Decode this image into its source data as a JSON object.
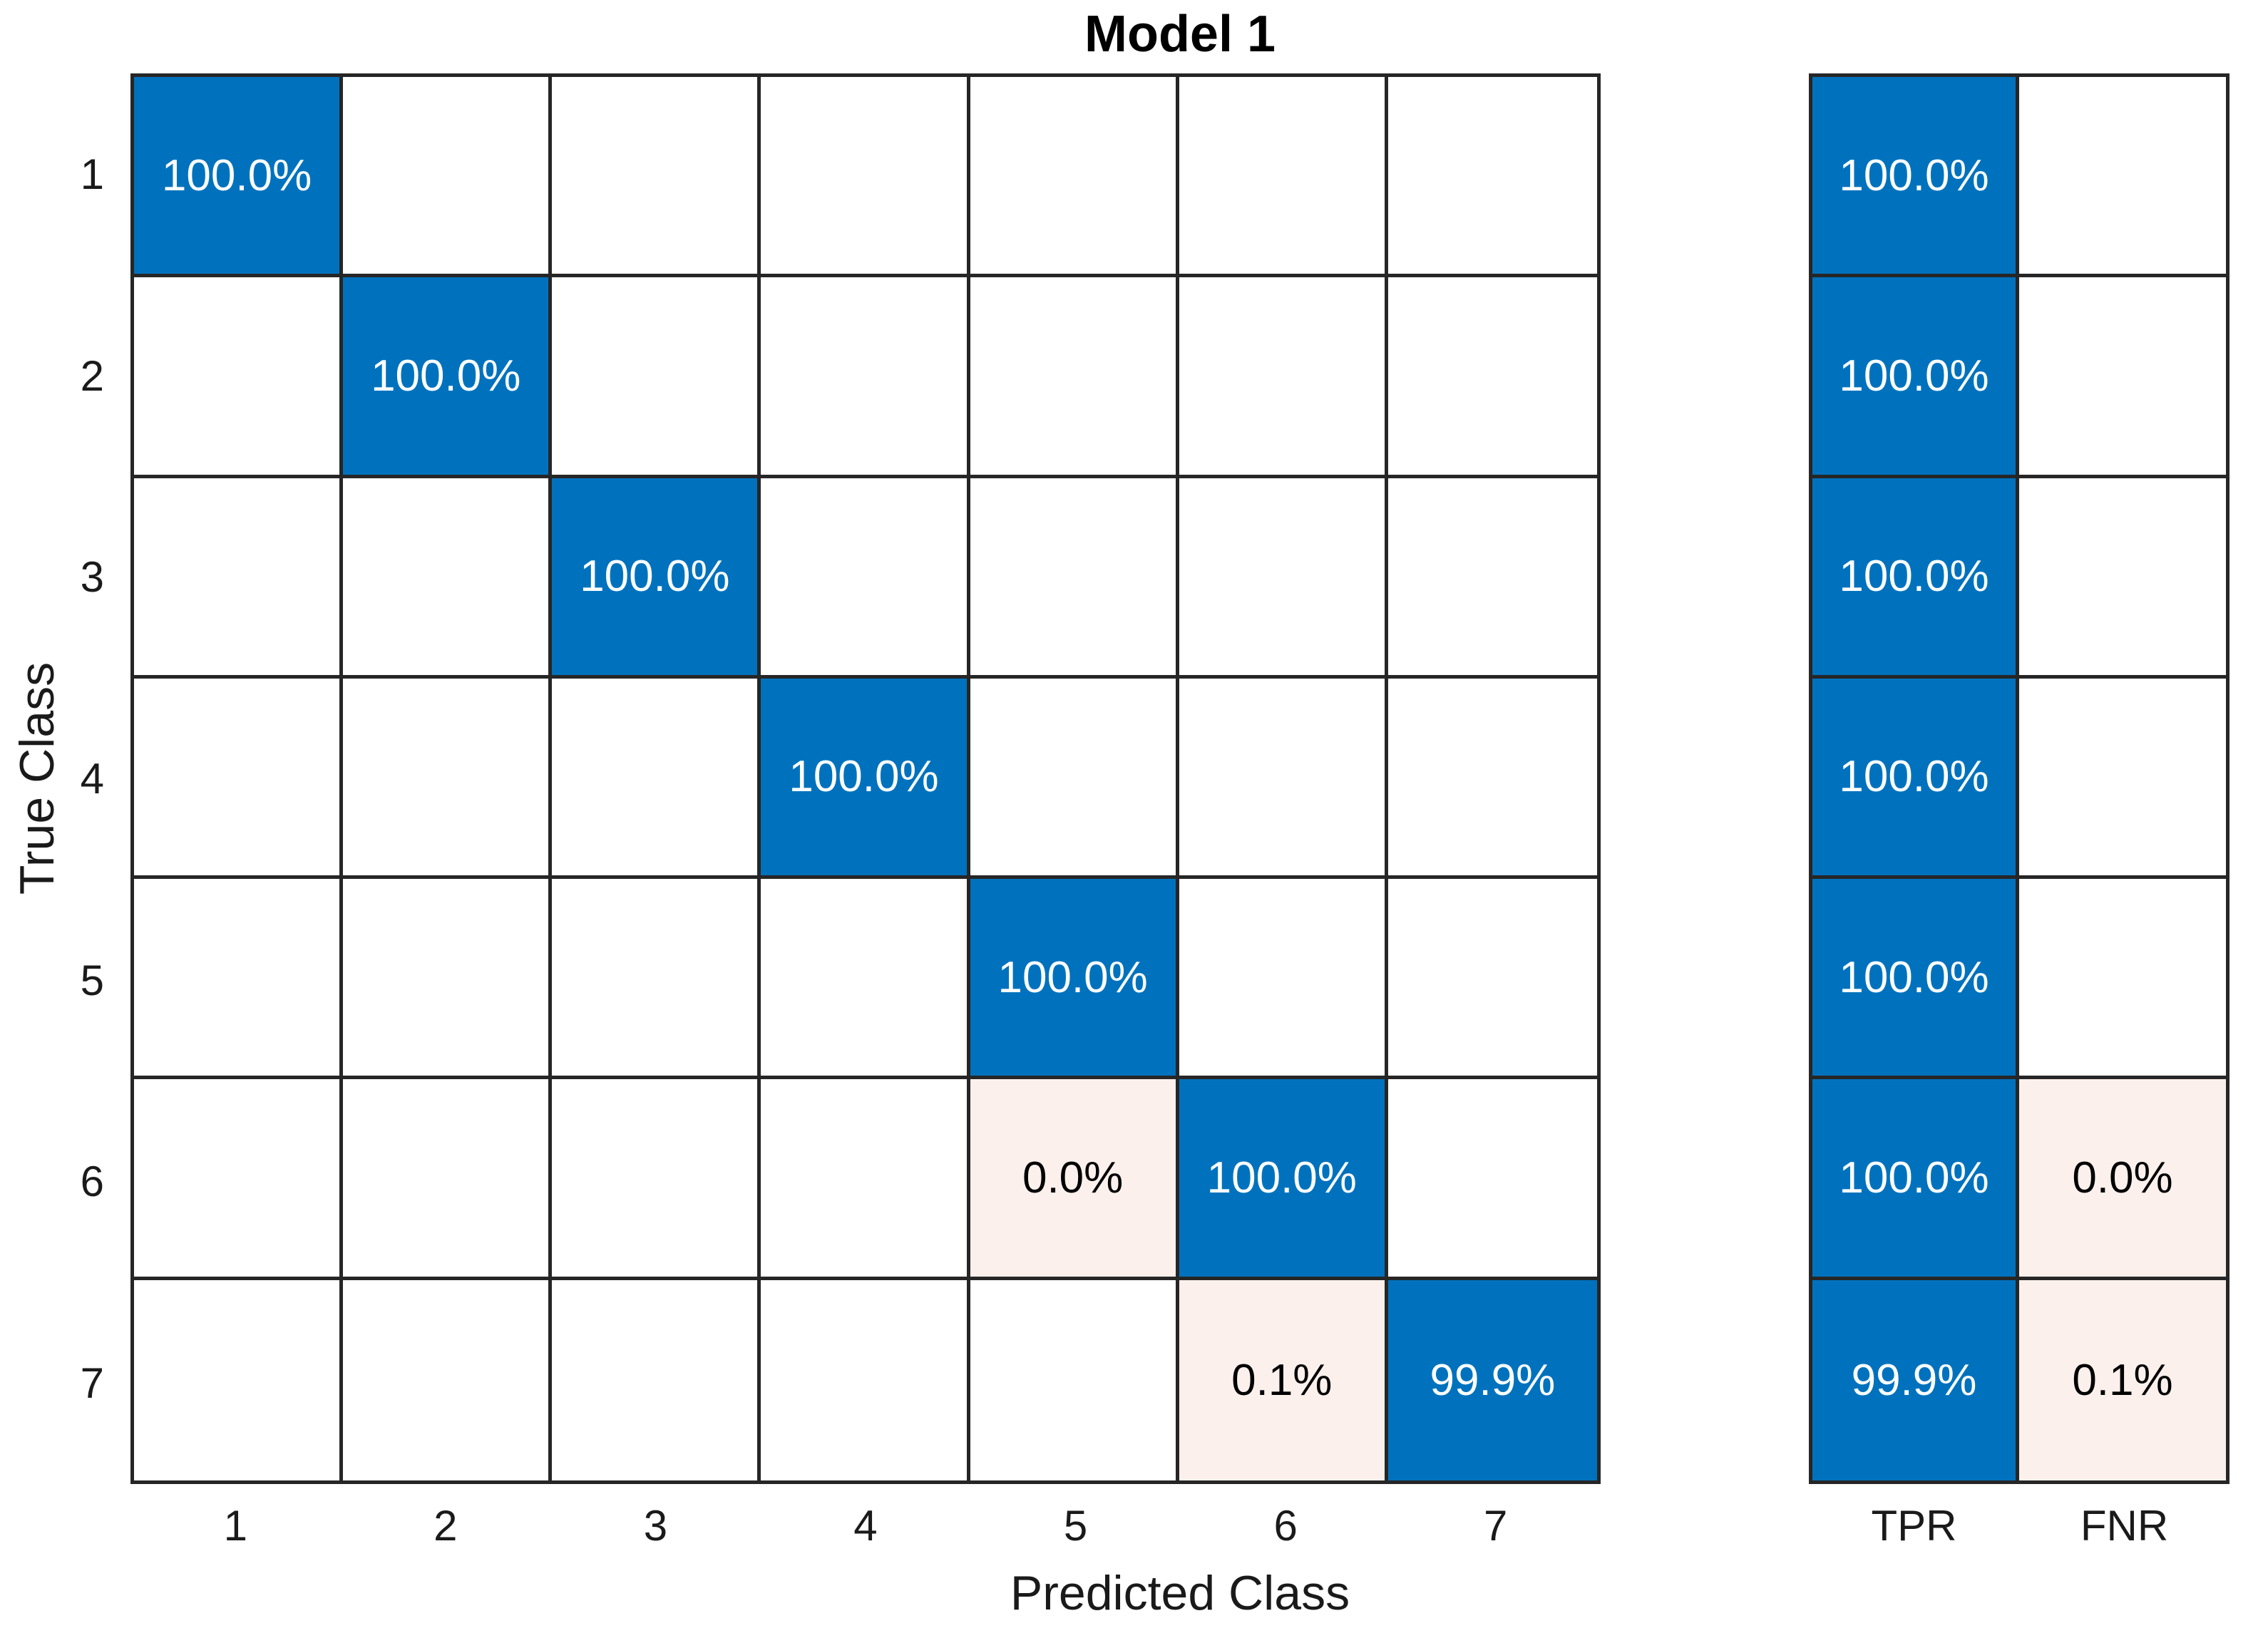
{
  "title": "Model 1",
  "colors": {
    "diagonal_fill": "#0072BD",
    "off_diagonal_fill": "#FCF0EC",
    "grid_line": "#262626",
    "diagonal_text": "#FFFFFF",
    "off_diagonal_text": "#000000",
    "background": "#FFFFFF"
  },
  "chart_data": {
    "type": "heatmap",
    "subtype": "confusion-matrix-row-normalized",
    "title": "Model 1",
    "xlabel": "Predicted Class",
    "ylabel": "True Class",
    "x_tick_labels": [
      "1",
      "2",
      "3",
      "4",
      "5",
      "6",
      "7"
    ],
    "y_tick_labels": [
      "1",
      "2",
      "3",
      "4",
      "5",
      "6",
      "7"
    ],
    "grid": true,
    "cells": [
      {
        "row": 1,
        "col": 1,
        "label": "100.0%",
        "value": 100.0,
        "type": "diag"
      },
      {
        "row": 2,
        "col": 2,
        "label": "100.0%",
        "value": 100.0,
        "type": "diag"
      },
      {
        "row": 3,
        "col": 3,
        "label": "100.0%",
        "value": 100.0,
        "type": "diag"
      },
      {
        "row": 4,
        "col": 4,
        "label": "100.0%",
        "value": 100.0,
        "type": "diag"
      },
      {
        "row": 5,
        "col": 5,
        "label": "100.0%",
        "value": 100.0,
        "type": "diag"
      },
      {
        "row": 6,
        "col": 5,
        "label": "0.0%",
        "value": 0.0,
        "type": "off"
      },
      {
        "row": 6,
        "col": 6,
        "label": "100.0%",
        "value": 100.0,
        "type": "diag"
      },
      {
        "row": 7,
        "col": 6,
        "label": "0.1%",
        "value": 0.1,
        "type": "off"
      },
      {
        "row": 7,
        "col": 7,
        "label": "99.9%",
        "value": 99.9,
        "type": "diag"
      }
    ],
    "matrix_percent": [
      [
        100.0,
        null,
        null,
        null,
        null,
        null,
        null
      ],
      [
        null,
        100.0,
        null,
        null,
        null,
        null,
        null
      ],
      [
        null,
        null,
        100.0,
        null,
        null,
        null,
        null
      ],
      [
        null,
        null,
        null,
        100.0,
        null,
        null,
        null
      ],
      [
        null,
        null,
        null,
        null,
        100.0,
        null,
        null
      ],
      [
        null,
        null,
        null,
        null,
        0.0,
        100.0,
        null
      ],
      [
        null,
        null,
        null,
        null,
        null,
        0.1,
        99.9
      ]
    ],
    "row_summary": {
      "column_labels": [
        "TPR",
        "FNR"
      ],
      "rows": [
        {
          "class": "1",
          "tpr": "100.0%",
          "fnr": ""
        },
        {
          "class": "2",
          "tpr": "100.0%",
          "fnr": ""
        },
        {
          "class": "3",
          "tpr": "100.0%",
          "fnr": ""
        },
        {
          "class": "4",
          "tpr": "100.0%",
          "fnr": ""
        },
        {
          "class": "5",
          "tpr": "100.0%",
          "fnr": ""
        },
        {
          "class": "6",
          "tpr": "100.0%",
          "fnr": "0.0%"
        },
        {
          "class": "7",
          "tpr": "99.9%",
          "fnr": "0.1%"
        }
      ]
    }
  }
}
